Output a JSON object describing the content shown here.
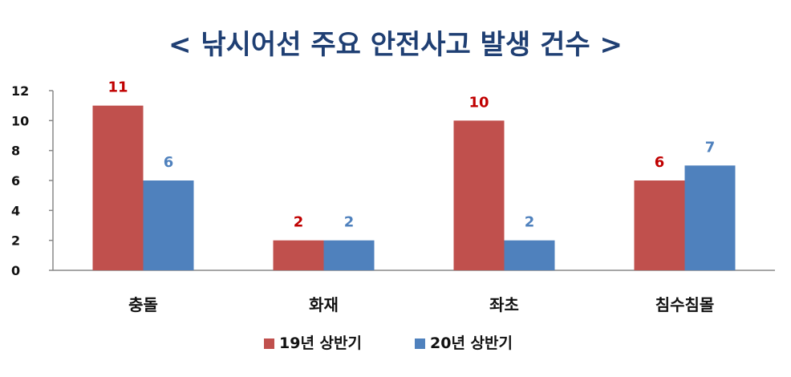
{
  "chart_data": {
    "type": "bar",
    "title": "< 낚시어선 주요 안전사고 발생 건수 >",
    "xlabel": "",
    "ylabel": "",
    "categories": [
      "충돌",
      "화재",
      "좌초",
      "침수침몰"
    ],
    "series": [
      {
        "name": "19년 상반기",
        "values": [
          11,
          2,
          10,
          6
        ],
        "color": "#c0504d",
        "label_color": "#c00000"
      },
      {
        "name": "20년 상반기",
        "values": [
          6,
          2,
          2,
          7
        ],
        "color": "#4f81bd",
        "label_color": "#4f81bd"
      }
    ],
    "ylim": [
      0,
      12
    ],
    "yticks": [
      0,
      2,
      4,
      6,
      8,
      10,
      12
    ],
    "grid": false,
    "legend": "bottom"
  }
}
